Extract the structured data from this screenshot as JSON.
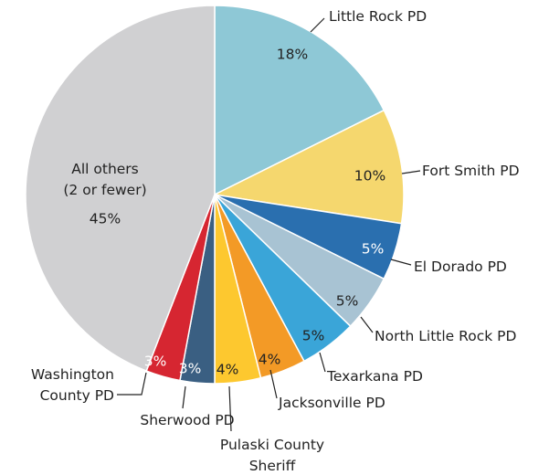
{
  "chart_data": {
    "type": "pie",
    "categories": [
      "Little Rock PD",
      "Fort Smith PD",
      "El Dorado PD",
      "North Little Rock PD",
      "Texarkana PD",
      "Jacksonville PD",
      "Pulaski County\nSheriff",
      "Sherwood PD",
      "Washington\nCounty PD",
      "All others\n(2 or fewer)"
    ],
    "values": [
      18,
      10,
      5,
      5,
      5,
      4,
      4,
      3,
      3,
      45
    ],
    "value_labels": [
      "18%",
      "10%",
      "5%",
      "5%",
      "5%",
      "4%",
      "4%",
      "3%",
      "3%",
      "45%"
    ],
    "colors": [
      "#8ec8d6",
      "#f5d76e",
      "#2a6faf",
      "#a8c3d3",
      "#3aa5d8",
      "#f39a26",
      "#fdc82f",
      "#3a5f82",
      "#d62631",
      "#d0d0d2"
    ]
  }
}
